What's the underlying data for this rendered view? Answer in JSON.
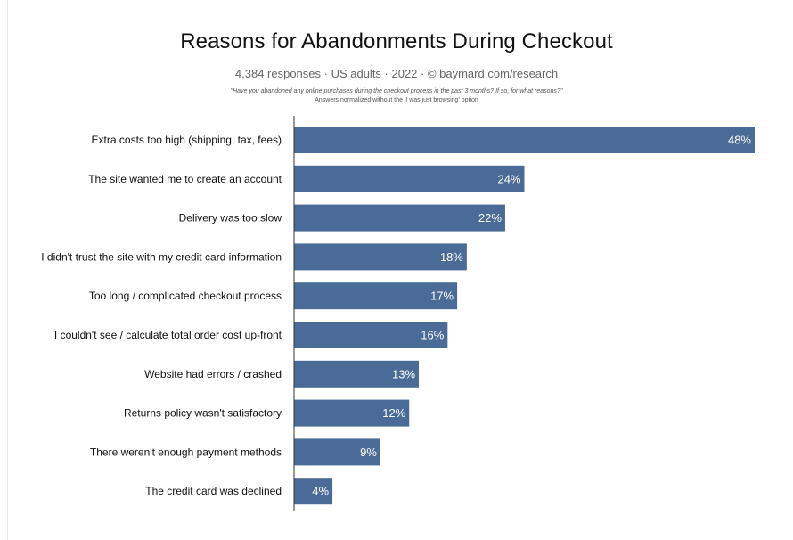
{
  "chart_data": {
    "type": "bar",
    "orientation": "horizontal",
    "title": "Reasons for Abandonments During Checkout",
    "subtitle": "4,384 responses  ·  US adults  ·  2022  ·  ©  baymard.com/research",
    "question": "\"Have you abandoned any online purchases during the checkout process in the past 3 months? If so, for what reasons?\"",
    "note": "Answers normalized without the 'I was just browsing' option",
    "categories": [
      "Extra costs too high (shipping, tax, fees)",
      "The site wanted me to create an account",
      "Delivery was too slow",
      "I didn't trust the site with my credit card information",
      "Too long / complicated checkout process",
      "I couldn't see / calculate total order cost up-front",
      "Website had errors / crashed",
      "Returns policy wasn't satisfactory",
      "There weren't enough payment methods",
      "The credit card was declined"
    ],
    "values": [
      48,
      24,
      22,
      18,
      17,
      16,
      13,
      12,
      9,
      4
    ],
    "value_labels": [
      "48%",
      "24%",
      "22%",
      "18%",
      "17%",
      "16%",
      "13%",
      "12%",
      "9%",
      "4%"
    ],
    "xlim": [
      0,
      48
    ],
    "grid": false,
    "legend": "none",
    "bar_color": "#4a6a98",
    "axis_color": "#333333"
  }
}
